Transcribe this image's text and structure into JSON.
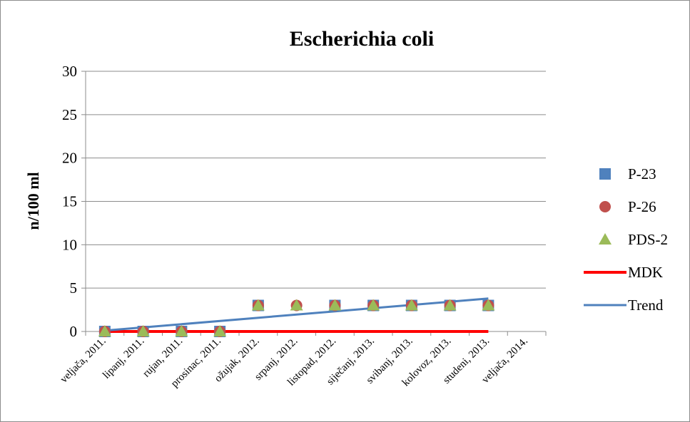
{
  "chart_data": {
    "type": "scatter",
    "title": "Escherichia coli",
    "ylabel": "n/100 ml",
    "xlabel": "",
    "ylim": [
      0,
      30
    ],
    "yticks": [
      0,
      5,
      10,
      15,
      20,
      25,
      30
    ],
    "x_tick_labels": [
      "veljača, 2011.",
      "lipanj, 2011.",
      "rujan, 2011.",
      "prosinac, 2011.",
      "ožujak, 2012.",
      "srpanj, 2012.",
      "listopad, 2012.",
      "siječanj, 2013.",
      "svibanj, 2013.",
      "kolovoz, 2013.",
      "studeni, 2013.",
      "veljača, 2014."
    ],
    "grid": true,
    "legend_position": "right",
    "series": [
      {
        "name": "P-23",
        "marker": "square",
        "color": "#4f81bd",
        "points": [
          {
            "x": "veljača, 2011.",
            "y": 0
          },
          {
            "x": "lipanj, 2011.",
            "y": 0
          },
          {
            "x": "rujan, 2011.",
            "y": 0
          },
          {
            "x": "prosinac, 2011.",
            "y": 0
          },
          {
            "x": "ožujak, 2012.",
            "y": 3
          },
          {
            "x": "listopad, 2012.",
            "y": 3
          },
          {
            "x": "siječanj, 2013.",
            "y": 3
          },
          {
            "x": "svibanj, 2013.",
            "y": 3
          },
          {
            "x": "kolovoz, 2013.",
            "y": 3
          },
          {
            "x": "studeni, 2013.",
            "y": 3
          }
        ]
      },
      {
        "name": "P-26",
        "marker": "circle",
        "color": "#c0504d",
        "points": [
          {
            "x": "veljača, 2011.",
            "y": 0
          },
          {
            "x": "lipanj, 2011.",
            "y": 0
          },
          {
            "x": "rujan, 2011.",
            "y": 0
          },
          {
            "x": "prosinac, 2011.",
            "y": 0
          },
          {
            "x": "ožujak, 2012.",
            "y": 3
          },
          {
            "x": "srpanj, 2012.",
            "y": 3
          },
          {
            "x": "listopad, 2012.",
            "y": 3
          },
          {
            "x": "siječanj, 2013.",
            "y": 3
          },
          {
            "x": "svibanj, 2013.",
            "y": 3
          },
          {
            "x": "kolovoz, 2013.",
            "y": 3
          },
          {
            "x": "studeni, 2013.",
            "y": 3
          }
        ]
      },
      {
        "name": "PDS-2",
        "marker": "triangle",
        "color": "#9bbb59",
        "points": [
          {
            "x": "veljača, 2011.",
            "y": 0
          },
          {
            "x": "lipanj, 2011.",
            "y": 0
          },
          {
            "x": "rujan, 2011.",
            "y": 0
          },
          {
            "x": "prosinac, 2011.",
            "y": 0
          },
          {
            "x": "ožujak, 2012.",
            "y": 3
          },
          {
            "x": "srpanj, 2012.",
            "y": 3
          },
          {
            "x": "listopad, 2012.",
            "y": 3
          },
          {
            "x": "siječanj, 2013.",
            "y": 3
          },
          {
            "x": "svibanj, 2013.",
            "y": 3
          },
          {
            "x": "kolovoz, 2013.",
            "y": 3
          },
          {
            "x": "studeni, 2013.",
            "y": 3
          }
        ]
      },
      {
        "name": "MDK",
        "marker": "line",
        "color": "#ff0000",
        "points": [
          {
            "x": "veljača, 2011.",
            "y": 0
          },
          {
            "x": "studeni, 2013.",
            "y": 0
          }
        ]
      },
      {
        "name": "Trend",
        "marker": "line",
        "color": "#4f81bd",
        "points": [
          {
            "x": "veljača, 2011.",
            "y": 0.1
          },
          {
            "x": "studeni, 2013.",
            "y": 3.8
          }
        ]
      }
    ]
  }
}
